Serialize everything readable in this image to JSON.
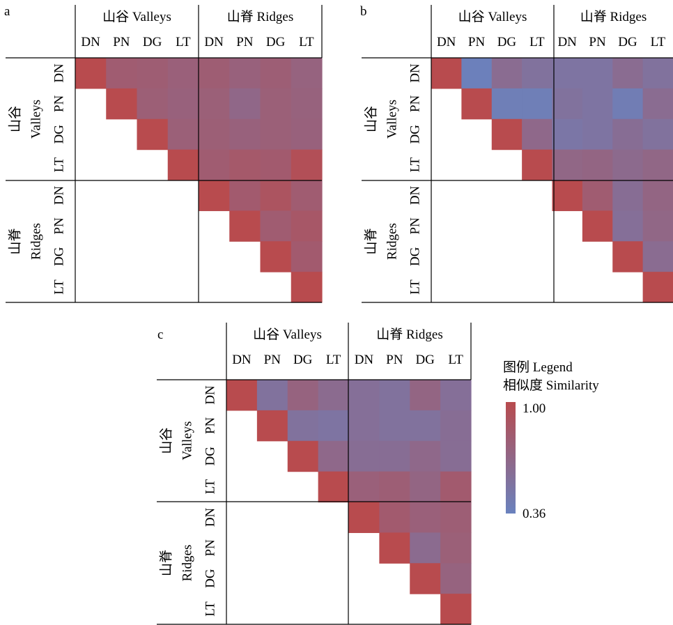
{
  "chart_data": [
    {
      "type": "heatmap",
      "panel_label": "a",
      "group_labels": [
        "山谷 Valleys",
        "山脊 Ridges"
      ],
      "group_row_labels": [
        [
          "山谷",
          "Valleys"
        ],
        [
          "山脊",
          "Ridges"
        ]
      ],
      "categories": [
        "DN",
        "PN",
        "DG",
        "LT",
        "DN",
        "PN",
        "DG",
        "LT"
      ],
      "matrix": [
        [
          1.0,
          0.8,
          0.79,
          0.75,
          0.79,
          0.74,
          0.78,
          0.72
        ],
        [
          null,
          1.0,
          0.77,
          0.74,
          0.76,
          0.67,
          0.76,
          0.73
        ],
        [
          null,
          null,
          1.0,
          0.76,
          0.77,
          0.74,
          0.76,
          0.74
        ],
        [
          null,
          null,
          null,
          1.0,
          0.8,
          0.84,
          0.82,
          0.95
        ],
        [
          null,
          null,
          null,
          null,
          1.0,
          0.82,
          0.9,
          0.8
        ],
        [
          null,
          null,
          null,
          null,
          null,
          1.0,
          0.8,
          0.86
        ],
        [
          null,
          null,
          null,
          null,
          null,
          null,
          1.0,
          0.82
        ],
        [
          null,
          null,
          null,
          null,
          null,
          null,
          null,
          1.0
        ]
      ]
    },
    {
      "type": "heatmap",
      "panel_label": "b",
      "group_labels": [
        "山谷 Valleys",
        "山脊 Ridges"
      ],
      "group_row_labels": [
        [
          "山谷",
          "Valleys"
        ],
        [
          "山脊",
          "Ridges"
        ]
      ],
      "categories": [
        "DN",
        "PN",
        "DG",
        "LT",
        "DN",
        "PN",
        "DG",
        "LT"
      ],
      "matrix": [
        [
          1.0,
          0.38,
          0.62,
          0.55,
          0.52,
          0.52,
          0.62,
          0.55
        ],
        [
          null,
          1.0,
          0.4,
          0.4,
          0.55,
          0.52,
          0.42,
          0.62
        ],
        [
          null,
          null,
          1.0,
          0.66,
          0.5,
          0.52,
          0.6,
          0.55
        ],
        [
          null,
          null,
          null,
          1.0,
          0.68,
          0.7,
          0.64,
          0.68
        ],
        [
          null,
          null,
          null,
          null,
          1.0,
          0.8,
          0.6,
          0.7
        ],
        [
          null,
          null,
          null,
          null,
          null,
          1.0,
          0.58,
          0.68
        ],
        [
          null,
          null,
          null,
          null,
          null,
          null,
          1.0,
          0.62
        ],
        [
          null,
          null,
          null,
          null,
          null,
          null,
          null,
          1.0
        ]
      ]
    },
    {
      "type": "heatmap",
      "panel_label": "c",
      "group_labels": [
        "山谷 Valleys",
        "山脊 Ridges"
      ],
      "group_row_labels": [
        [
          "山谷",
          "Valleys"
        ],
        [
          "山脊",
          "Ridges"
        ]
      ],
      "categories": [
        "DN",
        "PN",
        "DG",
        "LT",
        "DN",
        "PN",
        "DG",
        "LT"
      ],
      "matrix": [
        [
          1.0,
          0.55,
          0.72,
          0.63,
          0.58,
          0.55,
          0.7,
          0.58
        ],
        [
          null,
          1.0,
          0.55,
          0.52,
          0.58,
          0.55,
          0.55,
          0.6
        ],
        [
          null,
          null,
          1.0,
          0.66,
          0.6,
          0.6,
          0.66,
          0.6
        ],
        [
          null,
          null,
          null,
          1.0,
          0.75,
          0.78,
          0.7,
          0.82
        ],
        [
          null,
          null,
          null,
          null,
          1.0,
          0.82,
          0.75,
          0.78
        ],
        [
          null,
          null,
          null,
          null,
          null,
          1.0,
          0.63,
          0.76
        ],
        [
          null,
          null,
          null,
          null,
          null,
          null,
          1.0,
          0.72
        ],
        [
          null,
          null,
          null,
          null,
          null,
          null,
          null,
          1.0
        ]
      ]
    }
  ],
  "legend": {
    "title_line1": "图例 Legend",
    "title_line2": "相似度 Similarity",
    "max_label": "1.00",
    "min_label": "0.36",
    "min": 0.36,
    "max": 1.0,
    "color_low": "#6a82be",
    "color_high": "#b84b4e"
  }
}
